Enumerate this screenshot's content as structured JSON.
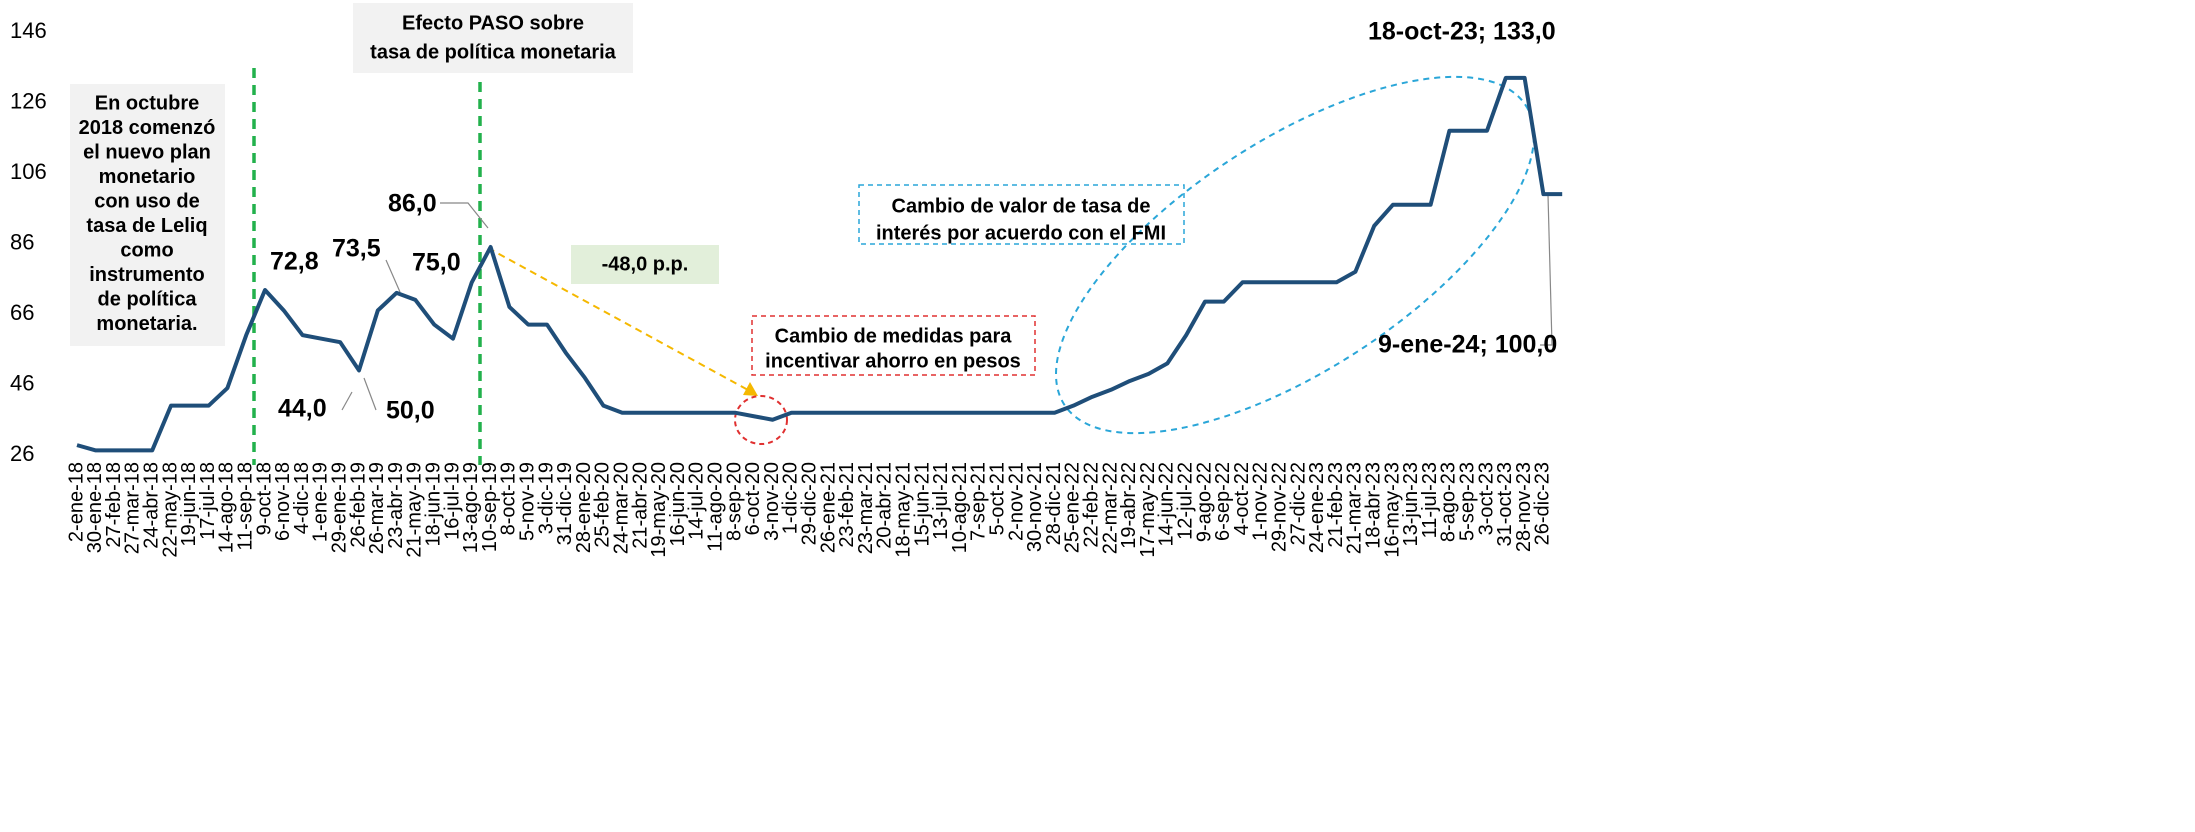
{
  "chart_data": {
    "type": "line",
    "categories": [
      "2-ene-18",
      "30-ene-18",
      "27-feb-18",
      "27-mar-18",
      "24-abr-18",
      "22-may-18",
      "19-jun-18",
      "17-jul-18",
      "14-ago-18",
      "11-sep-18",
      "9-oct-18",
      "6-nov-18",
      "4-dic-18",
      "1-ene-19",
      "29-ene-19",
      "26-feb-19",
      "26-mar-19",
      "23-abr-19",
      "21-may-19",
      "18-jun-19",
      "16-jul-19",
      "13-ago-19",
      "10-sep-19",
      "8-oct-19",
      "5-nov-19",
      "3-dic-19",
      "31-dic-19",
      "28-ene-20",
      "25-feb-20",
      "24-mar-20",
      "21-abr-20",
      "19-may-20",
      "16-jun-20",
      "14-jul-20",
      "11-ago-20",
      "8-sep-20",
      "6-oct-20",
      "3-nov-20",
      "1-dic-20",
      "29-dic-20",
      "26-ene-21",
      "23-feb-21",
      "23-mar-21",
      "20-abr-21",
      "18-may-21",
      "15-jun-21",
      "13-jul-21",
      "10-ago-21",
      "7-sep-21",
      "5-oct-21",
      "2-nov-21",
      "30-nov-21",
      "28-dic-21",
      "25-ene-22",
      "22-feb-22",
      "22-mar-22",
      "19-abr-22",
      "17-may-22",
      "14-jun-22",
      "12-jul-22",
      "9-ago-22",
      "6-sep-22",
      "4-oct-22",
      "1-nov-22",
      "29-nov-22",
      "27-dic-22",
      "24-ene-23",
      "21-feb-23",
      "21-mar-23",
      "18-abr-23",
      "16-may-23",
      "13-jun-23",
      "11-jul-23",
      "8-ago-23",
      "5-sep-23",
      "3-oct-23",
      "31-oct-23",
      "28-nov-23",
      "26-dic-23",
      null
    ],
    "series": [
      {
        "color": "#1f4e79",
        "values": [
          28.8,
          27.3,
          27.3,
          27.3,
          27.3,
          40,
          40,
          40,
          45,
          60,
          72.8,
          67,
          60,
          59,
          58,
          50,
          67,
          72,
          70,
          63,
          59,
          75,
          85,
          68,
          63,
          63,
          55,
          48,
          40,
          38,
          38,
          38,
          38,
          38,
          38,
          38,
          37,
          36,
          38,
          38,
          38,
          38,
          38,
          38,
          38,
          38,
          38,
          38,
          38,
          38,
          38,
          38,
          38,
          40,
          42.5,
          44.5,
          47,
          49,
          52,
          60,
          69.5,
          69.5,
          75,
          75,
          75,
          75,
          75,
          75,
          78,
          91,
          97,
          97,
          97,
          118,
          118,
          118,
          133,
          133,
          100,
          100
        ]
      }
    ],
    "ylim": [
      26,
      146
    ],
    "yticks": [
      26,
      46,
      66,
      86,
      106,
      126,
      146
    ],
    "annotations": [
      "72,8",
      "73,5",
      "44,0",
      "50,0",
      "75,0",
      "86,0",
      "18-oct-23; 133,0",
      "9-ene-24; 100,0"
    ],
    "boxes": [
      {
        "lines": [
          "En octubre",
          "2018 comenzó",
          "el nuevo plan",
          "monetario",
          "con uso de",
          "tasa de Leliq",
          "como",
          "instrumento",
          "de política",
          "monetaria."
        ]
      },
      {
        "lines": [
          "Efecto PASO sobre",
          "tasa de política monetaria"
        ]
      },
      {
        "lines": [
          "-48,0 p.p."
        ]
      },
      {
        "lines": [
          "Cambio de medidas para",
          "incentivar ahorro en pesos"
        ]
      },
      {
        "lines": [
          "Cambio de valor de tasa de",
          "interés por acuerdo con el FMI"
        ]
      }
    ]
  }
}
